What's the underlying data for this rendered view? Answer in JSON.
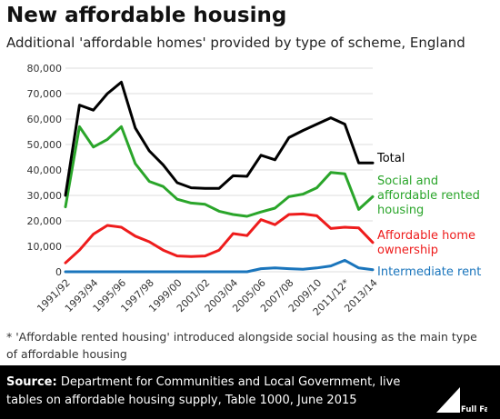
{
  "title": "New affordable housing",
  "subtitle": "Additional 'affordable homes' provided by type of scheme, England",
  "footnote": "* 'Affordable rented housing' introduced alongside social housing as the main type of affordable housing",
  "source": {
    "label": "Source:",
    "text": "Department for Communities and Local Government, live tables on affordable housing supply, Table 1000, June 2015"
  },
  "logo": {
    "name": "full-fact-logo",
    "text": "Full Fact"
  },
  "chart_data": {
    "type": "line",
    "ylim": [
      0,
      80000
    ],
    "yticks": [
      "0",
      "10,000",
      "20,000",
      "30,000",
      "40,000",
      "50,000",
      "60,000",
      "70,000",
      "80,000"
    ],
    "ytick_values": [
      0,
      10000,
      20000,
      30000,
      40000,
      50000,
      60000,
      70000,
      80000
    ],
    "x": [
      "1991/92",
      "1992/93",
      "1993/94",
      "1994/95",
      "1995/96",
      "1996/97",
      "1997/98",
      "1998/99",
      "1999/00",
      "2000/01",
      "2001/02",
      "2002/03",
      "2003/04",
      "2004/05",
      "2005/06",
      "2006/07",
      "2007/08",
      "2008/09",
      "2009/10",
      "2010/11",
      "2011/12*",
      "2012/13",
      "2013/14"
    ],
    "xtick_labels": [
      "1991/92",
      "1993/94",
      "1995/96",
      "1997/98",
      "1999/00",
      "2001/02",
      "2003/04",
      "2005/06",
      "2007/08",
      "2009/10",
      "2011/12*",
      "2013/14"
    ],
    "grid": true,
    "legend": "direct labels at right end of lines",
    "series": [
      {
        "name": "Total",
        "color": "#000000",
        "values": [
          30000,
          65500,
          63500,
          70000,
          74500,
          56500,
          47500,
          42000,
          35000,
          33000,
          32800,
          32800,
          37700,
          37500,
          45800,
          44000,
          52700,
          55500,
          58000,
          60500,
          58000,
          42800,
          42800
        ]
      },
      {
        "name": "Social and affordable rented housing",
        "color": "#2aa52a",
        "values": [
          25500,
          57000,
          49000,
          52000,
          57000,
          42500,
          35500,
          33500,
          28500,
          27000,
          26500,
          23800,
          22500,
          21800,
          23500,
          25000,
          29500,
          30500,
          33000,
          39000,
          38500,
          24500,
          29500
        ]
      },
      {
        "name": "Affordable home ownership",
        "color": "#ee1c1c",
        "values": [
          3500,
          8500,
          14800,
          18200,
          17500,
          14000,
          11800,
          8500,
          6200,
          6000,
          6200,
          8500,
          15000,
          14200,
          20500,
          18500,
          22500,
          22700,
          22000,
          17000,
          17500,
          17200,
          11500
        ]
      },
      {
        "name": "Intermediate rent",
        "color": "#1a75bc",
        "values": [
          0,
          0,
          0,
          0,
          0,
          0,
          0,
          0,
          0,
          0,
          0,
          0,
          0,
          0,
          1200,
          1500,
          1200,
          1000,
          1500,
          2300,
          4500,
          1500,
          800
        ]
      }
    ]
  }
}
